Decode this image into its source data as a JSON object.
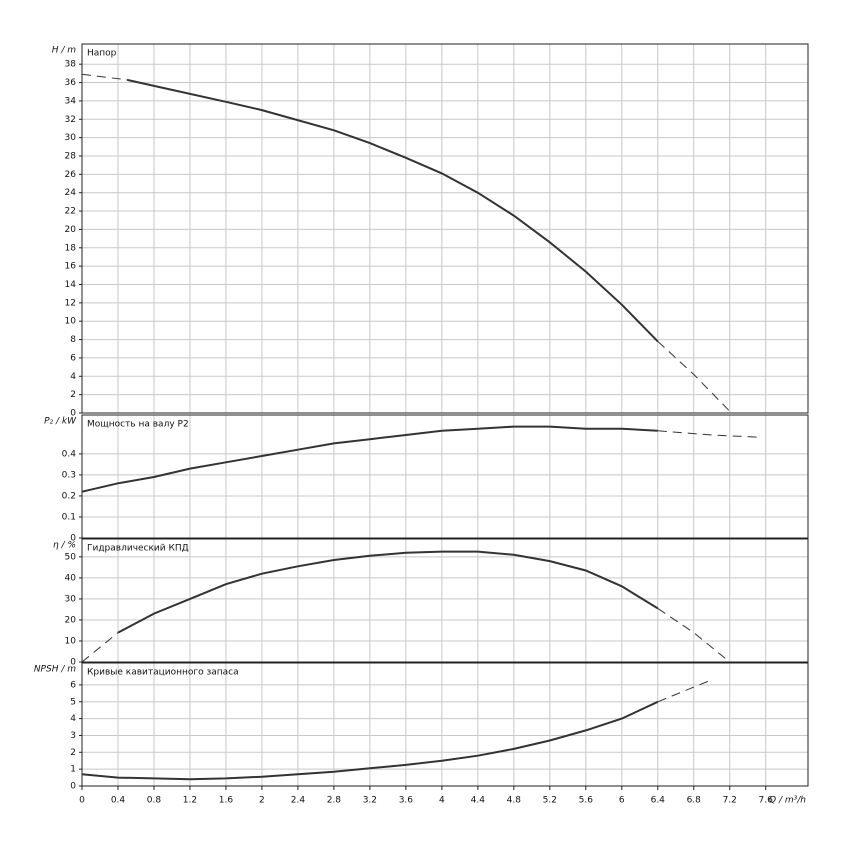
{
  "chart_data": [
    {
      "type": "line",
      "title": "Напор",
      "ylabel": "H / m",
      "xlim": [
        0,
        8.07
      ],
      "ylim": [
        0,
        40.2
      ],
      "yticks": [
        0,
        2,
        4,
        6,
        8,
        10,
        12,
        14,
        16,
        18,
        20,
        22,
        24,
        26,
        28,
        30,
        32,
        34,
        36,
        38
      ],
      "grid": true,
      "series": [
        {
          "color": "#333333",
          "line_style": "dashed",
          "x": [
            0,
            0.5
          ],
          "values": [
            36.9,
            36.3
          ]
        },
        {
          "color": "#333333",
          "line_style": "solid",
          "x": [
            0.5,
            1,
            1.6,
            2,
            2.8,
            3.2,
            3.6,
            4,
            4.4,
            4.8,
            5.2,
            5.6,
            6,
            6.4
          ],
          "values": [
            36.3,
            35.2,
            33.9,
            33,
            30.8,
            29.4,
            27.8,
            26.1,
            24,
            21.5,
            18.6,
            15.4,
            11.8,
            7.8
          ]
        },
        {
          "color": "#333333",
          "line_style": "dashed",
          "x": [
            6.4,
            6.8,
            7.2
          ],
          "values": [
            7.8,
            4.2,
            0.2
          ]
        }
      ]
    },
    {
      "type": "line",
      "title": "Мощность на валу P2",
      "ylabel": "P₂ / kW",
      "xlim": [
        0,
        8.07
      ],
      "ylim": [
        0,
        0.585
      ],
      "yticks": [
        0,
        0.1,
        0.2,
        0.3,
        0.4
      ],
      "grid": true,
      "series": [
        {
          "color": "#333333",
          "line_style": "solid",
          "x": [
            0,
            0.4,
            0.8,
            1.2,
            1.6,
            2,
            2.4,
            2.8,
            3.2,
            3.6,
            4,
            4.4,
            4.8,
            5.2,
            5.6,
            6,
            6.4
          ],
          "values": [
            0.22,
            0.26,
            0.29,
            0.33,
            0.36,
            0.39,
            0.42,
            0.45,
            0.47,
            0.49,
            0.51,
            0.52,
            0.53,
            0.53,
            0.52,
            0.52,
            0.51
          ]
        },
        {
          "color": "#333333",
          "line_style": "dashed",
          "x": [
            6.4,
            7,
            7.5
          ],
          "values": [
            0.51,
            0.49,
            0.48
          ]
        }
      ]
    },
    {
      "type": "line",
      "title": "Гидравлический КПД",
      "ylabel": "η / %",
      "xlim": [
        0,
        8.07
      ],
      "ylim": [
        0,
        58.5
      ],
      "yticks": [
        0,
        10,
        20,
        30,
        40,
        50
      ],
      "grid": true,
      "series": [
        {
          "color": "#333333",
          "line_style": "dashed",
          "x": [
            0,
            0.4
          ],
          "values": [
            0,
            14
          ]
        },
        {
          "color": "#333333",
          "line_style": "solid",
          "x": [
            0.4,
            0.8,
            1.2,
            1.6,
            2,
            2.4,
            2.8,
            3.2,
            3.6,
            4,
            4.4,
            4.8,
            5.2,
            5.6,
            6,
            6.4
          ],
          "values": [
            14,
            23,
            30,
            37,
            42,
            45.5,
            48.5,
            50.5,
            52,
            52.5,
            52.5,
            51,
            48,
            43.5,
            36,
            25.5
          ]
        },
        {
          "color": "#333333",
          "line_style": "dashed",
          "x": [
            6.4,
            6.8,
            7.2
          ],
          "values": [
            25.5,
            14,
            0
          ]
        }
      ]
    },
    {
      "type": "line",
      "title": "Кривые кавитационного запаса",
      "ylabel": "NPSH / m",
      "xlabel": "Q / m³/h",
      "xlim": [
        0,
        8.07
      ],
      "ylim": [
        0,
        7.3
      ],
      "yticks": [
        0,
        1,
        2,
        3,
        4,
        5,
        6
      ],
      "xticks": [
        0,
        0.4,
        0.8,
        1.2,
        1.6,
        2,
        2.4,
        2.8,
        3.2,
        3.6,
        4,
        4.4,
        4.8,
        5.2,
        5.6,
        6,
        6.4,
        6.8,
        7.2,
        7.6
      ],
      "grid": true,
      "series": [
        {
          "color": "#333333",
          "line_style": "solid",
          "x": [
            0,
            0.4,
            0.8,
            1.2,
            1.6,
            2,
            2.4,
            2.8,
            3.2,
            3.6,
            4,
            4.4,
            4.8,
            5.2,
            5.6,
            6,
            6.4
          ],
          "values": [
            0.7,
            0.5,
            0.45,
            0.4,
            0.45,
            0.55,
            0.7,
            0.85,
            1.05,
            1.25,
            1.5,
            1.8,
            2.2,
            2.7,
            3.3,
            4,
            5
          ]
        },
        {
          "color": "#333333",
          "line_style": "dashed",
          "x": [
            6.4,
            7
          ],
          "values": [
            5,
            6.3
          ]
        }
      ]
    }
  ]
}
